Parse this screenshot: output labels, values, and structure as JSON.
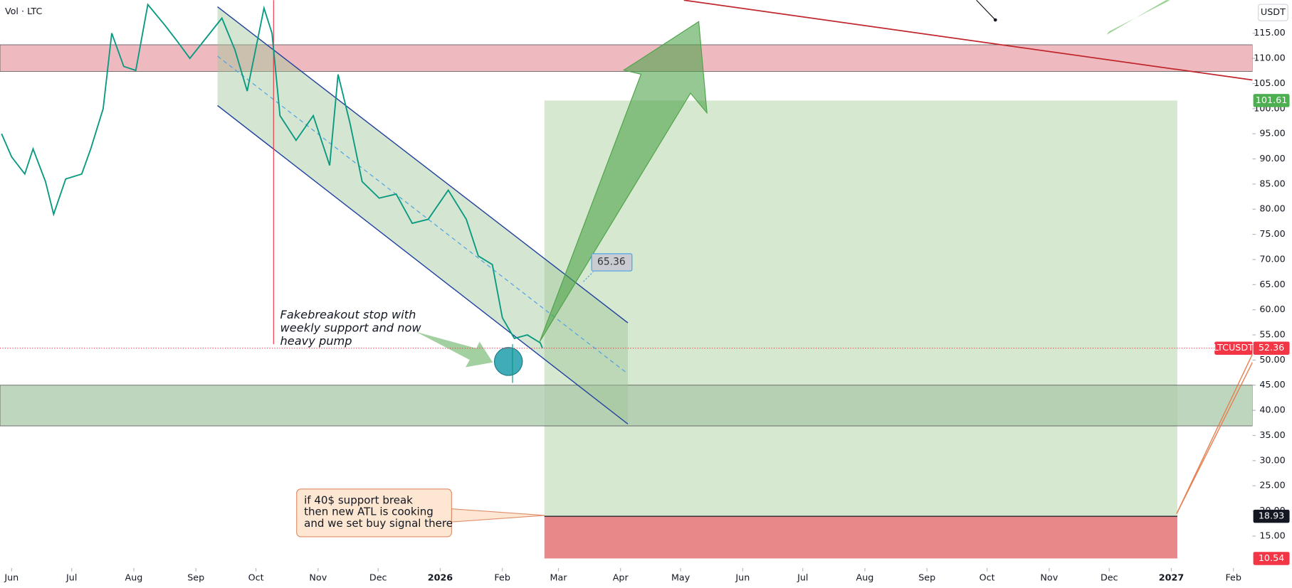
{
  "chart_data": {
    "type": "line",
    "legend_text": "Vol · LTC",
    "currency": "USDT",
    "symbol": "LTCUSDT",
    "last_price": 52.36,
    "callout_value": 65.36,
    "series": [
      {
        "name": "LTCUSDT",
        "color": "#089981",
        "x": [
          -5,
          0,
          6.6,
          10.7,
          16.9,
          21,
          27,
          35,
          39.5,
          45.7,
          50,
          56,
          62,
          68,
          76.5,
          82.7,
          89,
          97,
          105,
          111.5,
          117.6,
          126,
          130,
          134,
          142,
          150.6,
          158.8,
          163,
          169,
          175,
          183.5,
          192,
          200,
          208,
          218,
          227,
          233,
          240,
          245,
          251,
          257.5,
          264,
          265
        ],
        "values": [
          95,
          90.4,
          87,
          92,
          85.5,
          79,
          86,
          87,
          92,
          100,
          115,
          108.4,
          107.6,
          120.7,
          116.6,
          113.4,
          110,
          114,
          118,
          111.7,
          103.5,
          120,
          115,
          98.6,
          93.7,
          98.6,
          88.7,
          106.8,
          97,
          85.5,
          82.2,
          83,
          77.2,
          78,
          83.8,
          78,
          70.7,
          69,
          58.4,
          54.3,
          55,
          53.4,
          52.36
        ]
      }
    ],
    "zones": [
      {
        "from": 107.4,
        "to": 112.7,
        "color": "#e8a3ab"
      },
      {
        "from": 36.9,
        "to": 45,
        "color": "#a9c8a8"
      }
    ],
    "position": {
      "x_start": 266,
      "x_end": 582,
      "target": 101.61,
      "entry": 18.93,
      "stop": 10.54,
      "profit_color": "#d6e8cf",
      "loss_color": "#e98888"
    },
    "annotations": [
      {
        "lines": [
          "Fakebreakout stop with",
          "weekly support and now",
          "heavy pump"
        ]
      },
      {
        "lines": [
          "if 40$ support break",
          "then new ATL is cooking",
          "and we set buy signal there"
        ]
      }
    ],
    "xlim": [
      -5.8,
      619.5
    ],
    "xticks": [
      {
        "value": 0,
        "label": "Jun"
      },
      {
        "value": 30,
        "label": "Jul"
      },
      {
        "value": 61,
        "label": "Aug"
      },
      {
        "value": 92,
        "label": "Sep"
      },
      {
        "value": 122,
        "label": "Oct"
      },
      {
        "value": 153,
        "label": "Nov"
      },
      {
        "value": 183,
        "label": "Dec"
      },
      {
        "value": 214,
        "label": "2026"
      },
      {
        "value": 245,
        "label": "Feb"
      },
      {
        "value": 273,
        "label": "Mar"
      },
      {
        "value": 304,
        "label": "Apr"
      },
      {
        "value": 334,
        "label": "May"
      },
      {
        "value": 365,
        "label": "Jun"
      },
      {
        "value": 395,
        "label": "Jul"
      },
      {
        "value": 426,
        "label": "Aug"
      },
      {
        "value": 457,
        "label": "Sep"
      },
      {
        "value": 487,
        "label": "Oct"
      },
      {
        "value": 518,
        "label": "Nov"
      },
      {
        "value": 548,
        "label": "Dec"
      },
      {
        "value": 579,
        "label": "2027"
      },
      {
        "value": 610,
        "label": "Feb"
      }
    ],
    "ylim": [
      8.63,
      121.57
    ],
    "yticks": [
      {
        "value": 15,
        "label": "15.00"
      },
      {
        "value": 20,
        "label": "20.00"
      },
      {
        "value": 25,
        "label": "25.00"
      },
      {
        "value": 30,
        "label": "30.00"
      },
      {
        "value": 35,
        "label": "35.00"
      },
      {
        "value": 40,
        "label": "40.00"
      },
      {
        "value": 45,
        "label": "45.00"
      },
      {
        "value": 50,
        "label": "50.00"
      },
      {
        "value": 55,
        "label": "55.00"
      },
      {
        "value": 60,
        "label": "60.00"
      },
      {
        "value": 65,
        "label": "65.00"
      },
      {
        "value": 70,
        "label": "70.00"
      },
      {
        "value": 75,
        "label": "75.00"
      },
      {
        "value": 80,
        "label": "80.00"
      },
      {
        "value": 85,
        "label": "85.00"
      },
      {
        "value": 90,
        "label": "90.00"
      },
      {
        "value": 95,
        "label": "95.00"
      },
      {
        "value": 100,
        "label": "100.00"
      },
      {
        "value": 105,
        "label": "105.00"
      },
      {
        "value": 110,
        "label": "110.00"
      },
      {
        "value": 115,
        "label": "115.00"
      }
    ]
  }
}
